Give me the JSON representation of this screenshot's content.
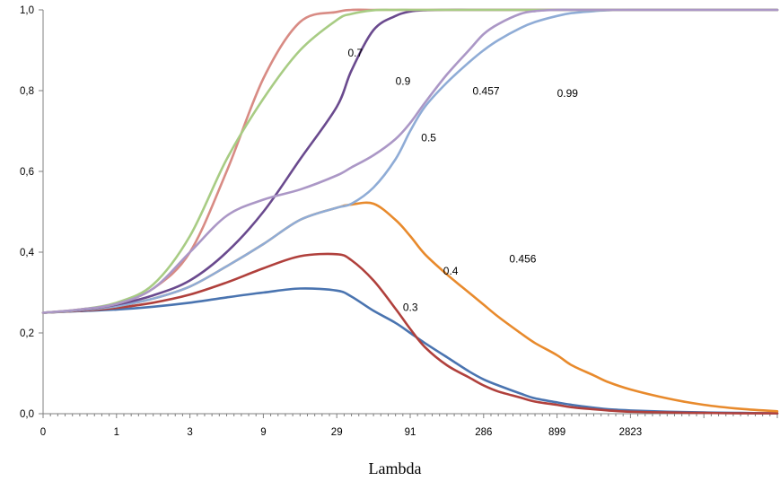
{
  "chart_data": {
    "type": "line",
    "title": "",
    "xlabel": "Lambda",
    "ylabel": "",
    "ylim": [
      0,
      1
    ],
    "yticks": [
      "0,0",
      "0,2",
      "0,4",
      "0,6",
      "0,8",
      "1,0"
    ],
    "x_tick_labels": [
      "0",
      "1",
      "3",
      "9",
      "29",
      "91",
      "286",
      "899",
      "2823"
    ],
    "x_axis_note": "categorical Lambda values on a geometric progression (ratio ~3.14 per labeled tick, 10 steps between labels)",
    "grid": false,
    "legend": "none (series labelled inline)",
    "x_positions": [
      0,
      5,
      10,
      15,
      20,
      25,
      30,
      35,
      40,
      42,
      45,
      48,
      50,
      52,
      55,
      58,
      60,
      62,
      65,
      67,
      70,
      72,
      75,
      77,
      80,
      85,
      90,
      95,
      100
    ],
    "series": [
      {
        "name": "0.3",
        "color": "#4a74b0",
        "values": [
          0.25,
          0.254,
          0.258,
          0.265,
          0.275,
          0.288,
          0.3,
          0.31,
          0.305,
          0.29,
          0.255,
          0.225,
          0.2,
          0.175,
          0.14,
          0.105,
          0.085,
          0.07,
          0.05,
          0.038,
          0.028,
          0.022,
          0.015,
          0.011,
          0.008,
          0.005,
          0.003,
          0.002,
          0.001
        ]
      },
      {
        "name": "0.4",
        "color": "#b0403c",
        "values": [
          0.25,
          0.255,
          0.262,
          0.275,
          0.295,
          0.325,
          0.36,
          0.39,
          0.395,
          0.38,
          0.33,
          0.26,
          0.21,
          0.165,
          0.12,
          0.09,
          0.07,
          0.055,
          0.04,
          0.03,
          0.022,
          0.016,
          0.011,
          0.008,
          0.005,
          0.003,
          0.002,
          0.001,
          0.001
        ]
      },
      {
        "name": "0.456",
        "color": "#e88a2c",
        "values": [
          0.25,
          0.256,
          0.266,
          0.285,
          0.315,
          0.365,
          0.42,
          0.48,
          0.51,
          0.518,
          0.52,
          0.48,
          0.44,
          0.395,
          0.345,
          0.3,
          0.27,
          0.24,
          0.2,
          0.175,
          0.145,
          0.12,
          0.095,
          0.078,
          0.06,
          0.038,
          0.022,
          0.012,
          0.006
        ]
      },
      {
        "name": "0.457",
        "color": "#8facd6",
        "values": [
          0.25,
          0.256,
          0.266,
          0.285,
          0.315,
          0.365,
          0.42,
          0.48,
          0.51,
          0.52,
          0.56,
          0.63,
          0.7,
          0.76,
          0.82,
          0.87,
          0.9,
          0.925,
          0.955,
          0.97,
          0.985,
          0.992,
          0.997,
          0.999,
          1.0,
          1.0,
          1.0,
          1.0,
          1.0
        ]
      },
      {
        "name": "0.5",
        "color": "#6a4a8e",
        "values": [
          0.25,
          0.257,
          0.27,
          0.293,
          0.33,
          0.4,
          0.5,
          0.63,
          0.76,
          0.85,
          0.95,
          0.985,
          0.996,
          0.999,
          1.0,
          1.0,
          1.0,
          1.0,
          1.0,
          1.0,
          1.0,
          1.0,
          1.0,
          1.0,
          1.0,
          1.0,
          1.0,
          1.0,
          1.0
        ]
      },
      {
        "name": "0.7",
        "color": "#d88b84",
        "values": [
          0.25,
          0.258,
          0.272,
          0.31,
          0.4,
          0.6,
          0.83,
          0.97,
          0.995,
          1.0,
          1.0,
          1.0,
          1.0,
          1.0,
          1.0,
          1.0,
          1.0,
          1.0,
          1.0,
          1.0,
          1.0,
          1.0,
          1.0,
          1.0,
          1.0,
          1.0,
          1.0,
          1.0,
          1.0
        ]
      },
      {
        "name": "0.9",
        "color": "#a8cc84",
        "values": [
          0.25,
          0.258,
          0.275,
          0.32,
          0.44,
          0.63,
          0.78,
          0.9,
          0.975,
          0.99,
          0.999,
          1.0,
          1.0,
          1.0,
          1.0,
          1.0,
          1.0,
          1.0,
          1.0,
          1.0,
          1.0,
          1.0,
          1.0,
          1.0,
          1.0,
          1.0,
          1.0,
          1.0,
          1.0
        ]
      },
      {
        "name": "0.99",
        "color": "#ab97c6",
        "values": [
          0.25,
          0.258,
          0.272,
          0.31,
          0.4,
          0.49,
          0.53,
          0.555,
          0.59,
          0.61,
          0.64,
          0.68,
          0.72,
          0.77,
          0.84,
          0.9,
          0.94,
          0.965,
          0.99,
          0.997,
          1.0,
          1.0,
          1.0,
          1.0,
          1.0,
          1.0,
          1.0,
          1.0,
          1.0
        ]
      }
    ]
  }
}
